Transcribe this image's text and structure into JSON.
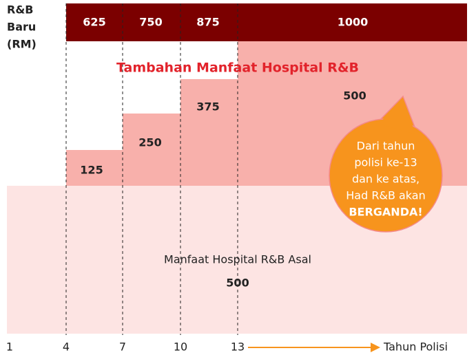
{
  "y_label": [
    "R&B",
    "Baru",
    "(RM)"
  ],
  "header_values": [
    625,
    750,
    875,
    1000
  ],
  "title": "Tambahan Manfaat Hospital R&B",
  "steps": [
    125,
    250,
    375,
    500
  ],
  "callout": {
    "lines": [
      "Dari tahun",
      "polisi ke-13",
      "dan ke atas,",
      "Had R&B akan"
    ],
    "emphasis": "BERGANDA!"
  },
  "base": {
    "label": "Manfaat Hospital R&B Asal",
    "value": 500
  },
  "x_axis": {
    "ticks": [
      1,
      4,
      7,
      10,
      13
    ],
    "label": "Tahun Polisi"
  }
}
